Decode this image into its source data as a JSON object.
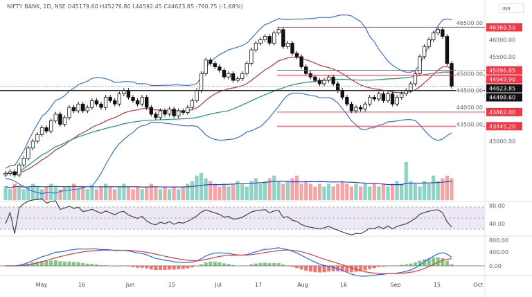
{
  "header": {
    "title": "NIFTY BANK, 1D, NSE  O45179.60  H45276.80  L44592.45  C44623.85  -760.75 (-1.68%)",
    "currency": "INR"
  },
  "chart_data": {
    "type": "candlestick",
    "symbol": "NIFTY BANK",
    "interval": "1D",
    "exchange": "NSE",
    "ohlc_last": {
      "open": 45179.6,
      "high": 45276.8,
      "low": 44592.45,
      "close": 44623.85,
      "change": -760.75,
      "change_pct": -1.68
    },
    "closes": [
      42050,
      42100,
      42000,
      42300,
      42500,
      42800,
      43000,
      43200,
      43400,
      43300,
      43600,
      43800,
      43500,
      43700,
      44000,
      43900,
      44100,
      43900,
      44000,
      44200,
      44100,
      44000,
      44300,
      44200,
      44100,
      44400,
      44500,
      44300,
      44200,
      44100,
      44300,
      44000,
      43800,
      43700,
      43900,
      43800,
      43950,
      43750,
      43900,
      43850,
      44000,
      44200,
      44500,
      45000,
      45400,
      45300,
      45200,
      45100,
      44900,
      45000,
      44800,
      44850,
      45000,
      45300,
      45700,
      45900,
      46000,
      46100,
      45900,
      46200,
      46300,
      45800,
      45900,
      45600,
      45500,
      45200,
      45000,
      44900,
      44800,
      44700,
      44800,
      44900,
      44700,
      44500,
      44300,
      44100,
      43900,
      44000,
      43950,
      44100,
      44300,
      44250,
      44400,
      44200,
      44400,
      44100,
      44300,
      44400,
      44500,
      44700,
      45000,
      45500,
      45800,
      46000,
      46200,
      46300,
      46100,
      45300,
      44623.85
    ],
    "volume": [
      5,
      4,
      6,
      5,
      4,
      5,
      6,
      5,
      4,
      5,
      6,
      5,
      4,
      5,
      5,
      6,
      4,
      5,
      4,
      5,
      4,
      5,
      6,
      5,
      4,
      5,
      6,
      5,
      4,
      5,
      4,
      5,
      6,
      5,
      4,
      5,
      4,
      5,
      4,
      5,
      6,
      7,
      9,
      10,
      8,
      7,
      6,
      5,
      6,
      5,
      6,
      7,
      6,
      5,
      7,
      8,
      6,
      7,
      8,
      9,
      7,
      6,
      7,
      8,
      9,
      6,
      7,
      6,
      5,
      6,
      5,
      6,
      5,
      6,
      7,
      6,
      5,
      6,
      5,
      6,
      5,
      6,
      5,
      6,
      5,
      6,
      7,
      6,
      14,
      7,
      6,
      5,
      7,
      6,
      9,
      7,
      8,
      9,
      8
    ],
    "price_axis": {
      "ticks": [
        43000,
        43500,
        44000,
        44500,
        45000,
        45500,
        46000,
        46500
      ],
      "range": [
        42000,
        46800
      ]
    },
    "x_ticks": [
      "May",
      "16",
      "Jun",
      "15",
      "Jul",
      "17",
      "Aug",
      "16",
      "Sep",
      "15",
      "Oct"
    ],
    "levels": [
      {
        "value": "46369.50",
        "color": "#f23645"
      },
      {
        "value": "45096.85",
        "color": "#f23645"
      },
      {
        "value": "44949.90",
        "color": "#f23645"
      },
      {
        "value": "43862.00",
        "color": "#f23645"
      },
      {
        "value": "43445.20",
        "color": "#f23645"
      }
    ],
    "current": {
      "value": "44623.85"
    },
    "support_black": {
      "value": "44498.60"
    },
    "rsi_axis": [
      "80.00",
      "40.00"
    ],
    "macd_axis": [
      "800.00",
      "400.00",
      "0.00"
    ],
    "colors": {
      "bands": "#3a6fd8",
      "ema": "#b5323c",
      "sma": "#16947a",
      "vol_up": "#8fd3c6",
      "vol_down": "#f4a4a4",
      "macd": "#2962ff",
      "signal": "#e03c3c",
      "hist_up": "#4caf50",
      "hist_down": "#e53935"
    }
  }
}
